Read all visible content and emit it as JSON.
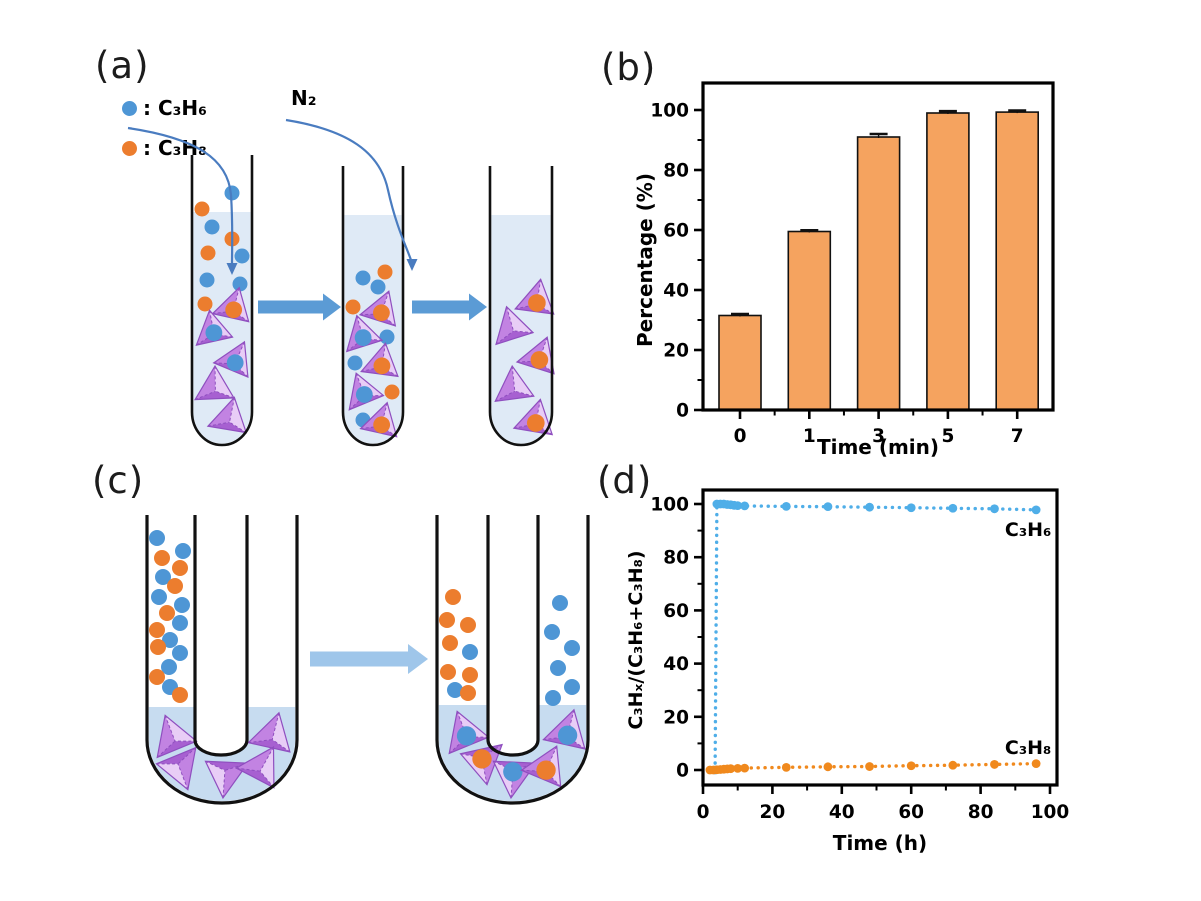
{
  "colors": {
    "c3h6_blue": "#4E96D5",
    "c3h8_orange": "#EC7D2E",
    "liquid_light": "#DFEAF6",
    "liquid_medium": "#C7DCF0",
    "tetra_main": "#C283E2",
    "tetra_light": "#E8CDF6",
    "tetra_dark": "#A760D1",
    "tetra_edge": "#8F4FBF",
    "arrow_blue": "#5B9BD5",
    "arrow_light_blue": "#9FC6EA",
    "curve_arrow_stroke": "#4A7CC0",
    "axis_black": "#000000"
  },
  "panels": {
    "a": {
      "label": "(a)"
    },
    "b": {
      "label": "(b)"
    },
    "c": {
      "label": "(c)"
    },
    "d": {
      "label": "(d)"
    }
  },
  "panel_a": {
    "legend": [
      {
        "name": "c3h6",
        "label": ": C₃H₆"
      },
      {
        "name": "c3h8",
        "label": ": C₃H₈"
      }
    ],
    "n2_label": "N₂"
  },
  "chart_data": [
    {
      "id": "b",
      "type": "bar",
      "title": "",
      "xlabel": "Time (min)",
      "ylabel": "Percentage (%)",
      "categories": [
        "0",
        "1",
        "3",
        "5",
        "7"
      ],
      "values": [
        31.5,
        59.5,
        91,
        99,
        99.3
      ],
      "errors": [
        0.5,
        0.4,
        1.0,
        0.6,
        0.5
      ],
      "ylim": [
        0,
        109
      ],
      "yticks": [
        0,
        20,
        40,
        60,
        80,
        100
      ],
      "grid": false,
      "bar_color": "#F5A35F",
      "bar_edge": "#111111"
    },
    {
      "id": "d",
      "type": "line",
      "title": "",
      "xlabel": "Time (h)",
      "ylabel": "C₃Hₓ/(C₃H₆+C₃H₈)",
      "xlim": [
        0,
        103
      ],
      "ylim": [
        -6,
        106
      ],
      "xticks": [
        0,
        20,
        40,
        60,
        80,
        100
      ],
      "yticks": [
        0,
        20,
        40,
        60,
        80,
        100
      ],
      "grid": false,
      "legend_position": "inside-right",
      "series": [
        {
          "name": "C₃H₆",
          "color": "#4FAEE8",
          "style": "dotted-with-markers",
          "label_pos": [
            87,
            88
          ],
          "x": [
            3.5,
            4,
            5,
            6,
            7,
            8,
            9,
            10,
            12,
            24,
            36,
            48,
            60,
            72,
            84,
            96
          ],
          "y": [
            0,
            100,
            100,
            100,
            99.8,
            99.7,
            99.5,
            99.4,
            99.3,
            99.1,
            99.0,
            98.8,
            98.6,
            98.4,
            98.2,
            97.8
          ]
        },
        {
          "name": "C₃H₈",
          "color": "#F0891D",
          "style": "dotted-with-markers",
          "label_pos": [
            87,
            6
          ],
          "x": [
            2,
            3,
            4,
            5,
            6,
            7,
            8,
            10,
            12,
            24,
            36,
            48,
            60,
            72,
            84,
            96
          ],
          "y": [
            0,
            0,
            0.1,
            0.2,
            0.3,
            0.4,
            0.5,
            0.6,
            0.7,
            1.0,
            1.2,
            1.3,
            1.6,
            1.8,
            2.1,
            2.4
          ]
        }
      ]
    }
  ]
}
